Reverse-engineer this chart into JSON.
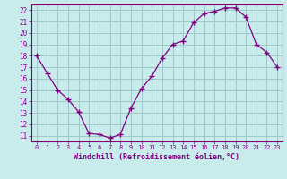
{
  "x": [
    0,
    1,
    2,
    3,
    4,
    5,
    6,
    7,
    8,
    9,
    10,
    11,
    12,
    13,
    14,
    15,
    16,
    17,
    18,
    19,
    20,
    21,
    22,
    23
  ],
  "y": [
    18.0,
    16.5,
    15.0,
    14.2,
    13.1,
    11.2,
    11.1,
    10.8,
    11.1,
    13.4,
    15.1,
    16.2,
    17.8,
    19.0,
    19.3,
    20.9,
    21.7,
    21.9,
    22.2,
    22.2,
    21.4,
    19.0,
    18.3,
    17.0
  ],
  "line_color": "#800080",
  "marker": "+",
  "marker_size": 4,
  "bg_color": "#c8ecec",
  "grid_color": "#a0c8c8",
  "xlabel": "Windchill (Refroidissement éolien,°C)",
  "xlabel_color": "#800080",
  "tick_color": "#800080",
  "ylim": [
    10.5,
    22.5
  ],
  "xlim": [
    -0.5,
    23.5
  ],
  "yticks": [
    11,
    12,
    13,
    14,
    15,
    16,
    17,
    18,
    19,
    20,
    21,
    22
  ],
  "xticks": [
    0,
    1,
    2,
    3,
    4,
    5,
    6,
    7,
    8,
    9,
    10,
    11,
    12,
    13,
    14,
    15,
    16,
    17,
    18,
    19,
    20,
    21,
    22,
    23
  ]
}
